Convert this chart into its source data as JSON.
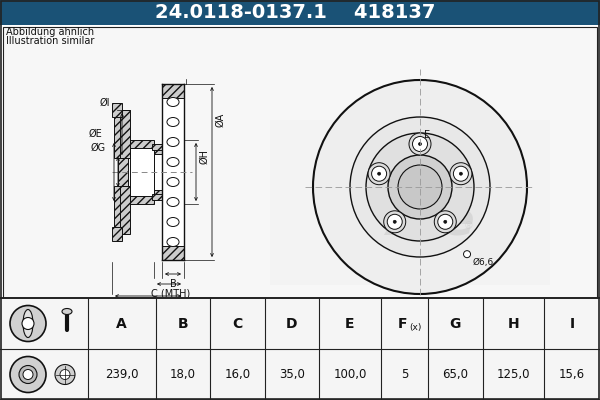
{
  "title_part_number": "24.0118-0137.1",
  "title_ate_number": "418137",
  "header_bg": "#1a5276",
  "header_text_color": "#ffffff",
  "bg_color": "#ffffff",
  "note_line1": "Abbildung ähnlich",
  "note_line2": "Illustration similar",
  "table_headers": [
    "A",
    "B",
    "C",
    "D",
    "E",
    "F(x)",
    "G",
    "H",
    "I"
  ],
  "table_values": [
    "239,0",
    "18,0",
    "16,0",
    "35,0",
    "100,0",
    "5",
    "65,0",
    "125,0",
    "15,6"
  ],
  "dim_label_phi6": "Ø6,6",
  "border_color": "#222222",
  "line_color": "#111111",
  "hatch_color": "#555555",
  "dash_color": "#888888",
  "header_font_size": 14,
  "note_font_size": 7,
  "ann_font_size": 7,
  "table_header_font_size": 9,
  "table_value_font_size": 8.5
}
